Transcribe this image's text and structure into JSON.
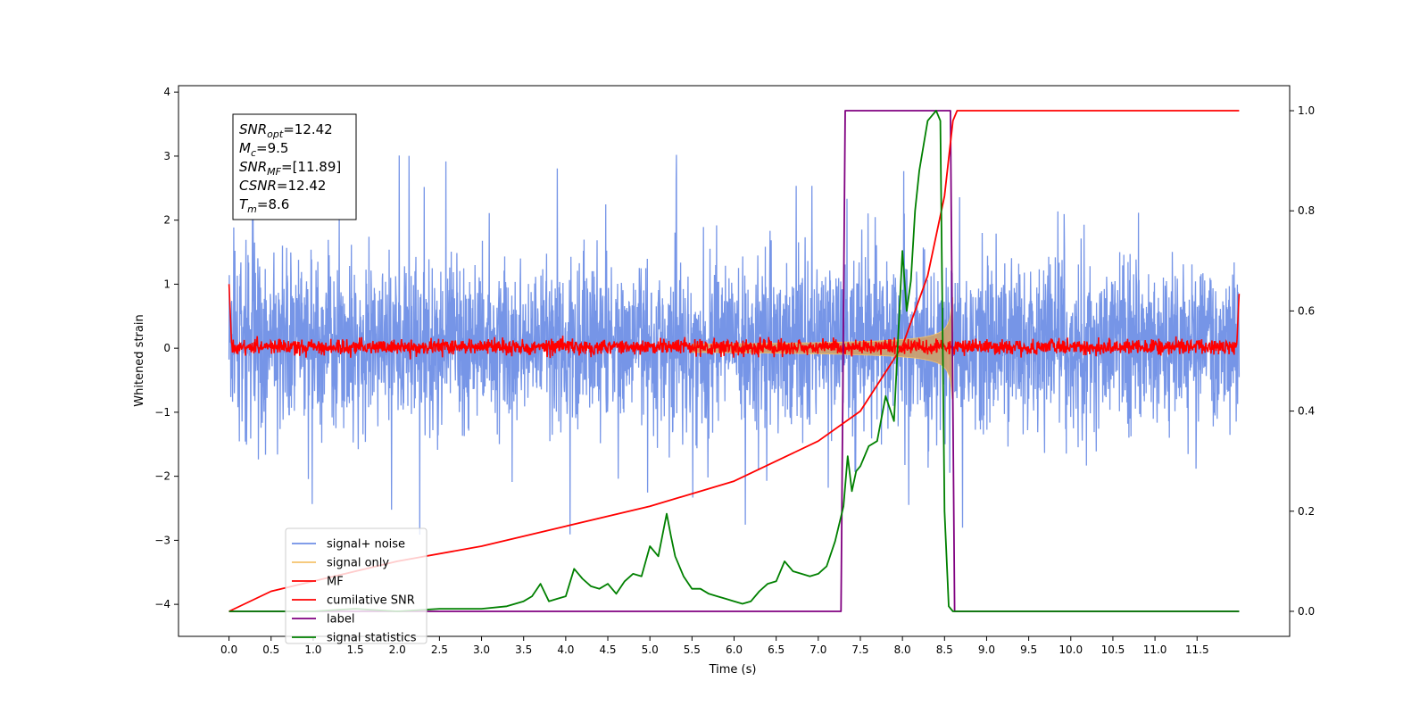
{
  "chart_data": {
    "type": "line",
    "xlabel": "Time (s)",
    "ylabel": "Whitened strain",
    "xlim": [
      -0.6,
      12.6
    ],
    "ylim": [
      -4.5,
      4.1
    ],
    "y2lim": [
      -0.05,
      1.05
    ],
    "xticks": [
      0.0,
      0.5,
      1.0,
      1.5,
      2.0,
      2.5,
      3.0,
      3.5,
      4.0,
      4.5,
      5.0,
      5.5,
      6.0,
      6.5,
      7.0,
      7.5,
      8.0,
      8.5,
      9.0,
      9.5,
      10.0,
      10.5,
      11.0,
      11.5
    ],
    "xtick_labels": [
      "0.0",
      "0.5",
      "1.0",
      "1.5",
      "2.0",
      "2.5",
      "3.0",
      "3.5",
      "4.0",
      "4.5",
      "5.0",
      "5.5",
      "6.0",
      "6.5",
      "7.0",
      "7.5",
      "8.0",
      "8.5",
      "9.0",
      "9.5",
      "10.0",
      "10.5",
      "11.0",
      "11.5"
    ],
    "yticks": [
      -4,
      -3,
      -2,
      -1,
      0,
      1,
      2,
      3,
      4
    ],
    "ytick_labels": [
      "−4",
      "−3",
      "−2",
      "−1",
      "0",
      "1",
      "2",
      "3",
      "4"
    ],
    "y2ticks": [
      0.0,
      0.2,
      0.4,
      0.6,
      0.8,
      1.0
    ],
    "y2tick_labels": [
      "0.0",
      "0.2",
      "0.4",
      "0.6",
      "0.8",
      "1.0"
    ],
    "legend_location": "lower-left",
    "annotation": [
      {
        "base": "SNR",
        "sub": "opt",
        "value": "=12.42"
      },
      {
        "base": "M",
        "sub": "c",
        "value": "=9.5"
      },
      {
        "base": "SNR",
        "sub": "MF",
        "value": "=[11.89]"
      },
      {
        "base": "CSNR",
        "sub": "",
        "value": "=12.42"
      },
      {
        "base": "T",
        "sub": "m",
        "value": "=8.6"
      }
    ],
    "series": [
      {
        "name": "signal+ noise",
        "color": "#6f8fe6",
        "axis": "left",
        "style": "noise",
        "x_range": [
          0.0,
          12.0
        ],
        "band": [
          -1.5,
          2.0
        ],
        "extreme_range": [
          -4.15,
          3.7
        ]
      },
      {
        "name": "signal only",
        "color": "#f5c36b",
        "axis": "left",
        "style": "chirp",
        "x_range": [
          5.5,
          8.6
        ],
        "amplitude_peak": 0.8,
        "merger_time": 8.6
      },
      {
        "name": "MF",
        "color": "#ff0000",
        "axis": "left",
        "style": "mf-noise",
        "x_range": [
          0.0,
          12.0
        ],
        "band": [
          -0.1,
          0.15
        ],
        "edge_values": [
          1.0,
          0.85
        ]
      },
      {
        "name": "cumilative SNR",
        "color": "#ff0000",
        "axis": "right",
        "x": [
          0.0,
          0.5,
          1.0,
          2.0,
          3.0,
          4.0,
          5.0,
          6.0,
          7.0,
          7.5,
          8.0,
          8.3,
          8.5,
          8.6,
          8.65,
          12.0
        ],
        "y": [
          0.0,
          0.04,
          0.06,
          0.1,
          0.13,
          0.17,
          0.21,
          0.26,
          0.34,
          0.4,
          0.53,
          0.67,
          0.83,
          0.98,
          1.0,
          1.0
        ]
      },
      {
        "name": "label",
        "color": "#800080",
        "axis": "right",
        "x": [
          0.0,
          7.27,
          7.32,
          8.57,
          8.62,
          12.0
        ],
        "y": [
          0.0,
          0.0,
          1.0,
          1.0,
          0.0,
          0.0
        ]
      },
      {
        "name": "signal statistics",
        "color": "#008000",
        "axis": "right",
        "x": [
          0.0,
          1.0,
          1.5,
          2.0,
          2.5,
          3.0,
          3.3,
          3.5,
          3.6,
          3.7,
          3.8,
          3.9,
          4.0,
          4.1,
          4.2,
          4.3,
          4.4,
          4.5,
          4.6,
          4.7,
          4.8,
          4.9,
          5.0,
          5.1,
          5.2,
          5.25,
          5.3,
          5.4,
          5.5,
          5.6,
          5.7,
          5.8,
          5.9,
          6.0,
          6.1,
          6.2,
          6.3,
          6.4,
          6.5,
          6.6,
          6.7,
          6.8,
          6.9,
          7.0,
          7.1,
          7.2,
          7.3,
          7.35,
          7.4,
          7.45,
          7.5,
          7.55,
          7.6,
          7.7,
          7.8,
          7.9,
          8.0,
          8.05,
          8.1,
          8.15,
          8.2,
          8.3,
          8.35,
          8.4,
          8.45,
          8.5,
          8.55,
          8.6,
          8.65,
          8.7,
          9.0,
          10.0,
          11.0,
          12.0
        ],
        "y": [
          0.0,
          0.0,
          0.005,
          0.0,
          0.005,
          0.005,
          0.01,
          0.02,
          0.03,
          0.055,
          0.02,
          0.025,
          0.03,
          0.085,
          0.065,
          0.05,
          0.045,
          0.055,
          0.035,
          0.06,
          0.075,
          0.07,
          0.13,
          0.11,
          0.195,
          0.15,
          0.11,
          0.07,
          0.045,
          0.045,
          0.035,
          0.03,
          0.025,
          0.02,
          0.015,
          0.02,
          0.04,
          0.055,
          0.06,
          0.1,
          0.08,
          0.075,
          0.07,
          0.075,
          0.09,
          0.14,
          0.21,
          0.31,
          0.24,
          0.28,
          0.29,
          0.31,
          0.33,
          0.34,
          0.43,
          0.38,
          0.72,
          0.6,
          0.66,
          0.8,
          0.88,
          0.98,
          0.99,
          1.0,
          0.98,
          0.2,
          0.01,
          0.0,
          0.0,
          0.0,
          0.0,
          0.0,
          0.0,
          0.0
        ]
      }
    ]
  }
}
